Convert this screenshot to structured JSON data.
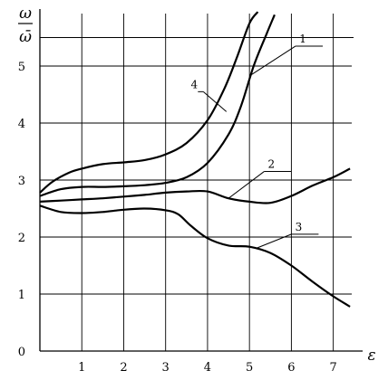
{
  "chart_data": {
    "type": "line",
    "xlabel": "ε",
    "ylabel_num": "ω",
    "ylabel_den": "ω̄",
    "xlim": [
      0,
      7.7
    ],
    "ylim": [
      0,
      6
    ],
    "grid": true,
    "x_ticks": [
      {
        "value": 1,
        "label": "1"
      },
      {
        "value": 2,
        "label": "2"
      },
      {
        "value": 3,
        "label": "3"
      },
      {
        "value": 4,
        "label": "4"
      },
      {
        "value": 5,
        "label": "5"
      },
      {
        "value": 6,
        "label": "6"
      },
      {
        "value": 7,
        "label": "7"
      }
    ],
    "y_ticks": [
      {
        "value": 0,
        "label": "0"
      },
      {
        "value": 1,
        "label": "1"
      },
      {
        "value": 2,
        "label": "2"
      },
      {
        "value": 3,
        "label": "3"
      },
      {
        "value": 4,
        "label": "4"
      },
      {
        "value": 5,
        "label": "5"
      }
    ],
    "series": [
      {
        "name": "1",
        "x": [
          0,
          0.5,
          1,
          1.5,
          2,
          2.5,
          3,
          3.5,
          4,
          4.5,
          4.8,
          5.1,
          5.4,
          5.6
        ],
        "y": [
          2.72,
          2.84,
          2.88,
          2.88,
          2.89,
          2.91,
          2.95,
          3.05,
          3.3,
          3.8,
          4.3,
          5.0,
          5.55,
          5.9
        ]
      },
      {
        "name": "2",
        "x": [
          0,
          0.5,
          1,
          1.5,
          2,
          2.5,
          3,
          3.5,
          4,
          4.5,
          5,
          5.5,
          6,
          6.5,
          7,
          7.4
        ],
        "y": [
          2.62,
          2.64,
          2.66,
          2.68,
          2.71,
          2.74,
          2.78,
          2.8,
          2.8,
          2.68,
          2.62,
          2.6,
          2.72,
          2.9,
          3.05,
          3.2
        ]
      },
      {
        "name": "3",
        "x": [
          0,
          0.5,
          1,
          1.5,
          2,
          2.5,
          3,
          3.3,
          3.6,
          4,
          4.5,
          5,
          5.5,
          6,
          6.5,
          7,
          7.4
        ],
        "y": [
          2.55,
          2.44,
          2.42,
          2.44,
          2.48,
          2.5,
          2.47,
          2.4,
          2.2,
          1.98,
          1.85,
          1.83,
          1.72,
          1.5,
          1.22,
          0.96,
          0.78
        ]
      },
      {
        "name": "4",
        "x": [
          0,
          0.3,
          0.7,
          1,
          1.5,
          2,
          2.5,
          3,
          3.5,
          4,
          4.4,
          4.7,
          5,
          5.2
        ],
        "y": [
          2.78,
          2.97,
          3.13,
          3.2,
          3.28,
          3.31,
          3.35,
          3.45,
          3.65,
          4.05,
          4.6,
          5.15,
          5.75,
          5.95
        ]
      }
    ],
    "curve_labels": [
      {
        "series": "1",
        "text": "1",
        "anchor_x": 5.05,
        "anchor_y": 4.85,
        "label_x": 6.1,
        "label_y": 5.35
      },
      {
        "series": "2",
        "text": "2",
        "anchor_x": 4.5,
        "anchor_y": 2.68,
        "label_x": 5.35,
        "label_y": 3.15
      },
      {
        "series": "3",
        "text": "3",
        "anchor_x": 5.15,
        "anchor_y": 1.8,
        "label_x": 6.0,
        "label_y": 2.05
      },
      {
        "series": "4",
        "text": "4",
        "anchor_x": 4.45,
        "anchor_y": 4.2,
        "label_x": 3.9,
        "label_y": 4.55
      }
    ]
  }
}
